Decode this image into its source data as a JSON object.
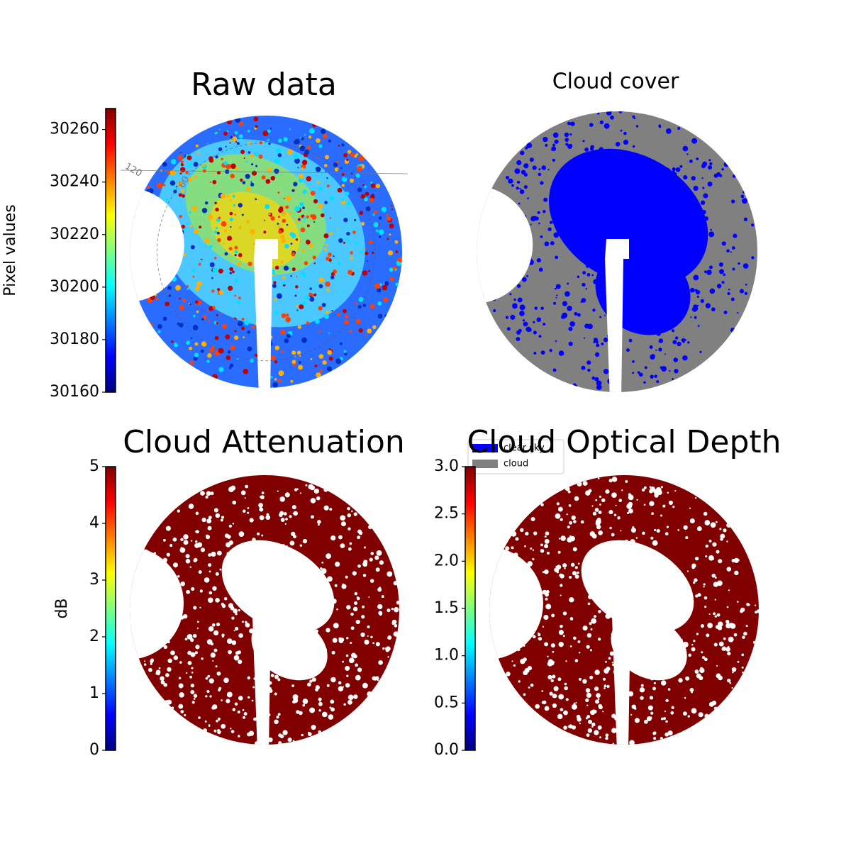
{
  "chart_data": [
    {
      "type": "image",
      "title": "Raw data",
      "colorbar": {
        "label": "Pixel values",
        "clim": [
          30160,
          30268
        ],
        "cticks": [
          30160,
          30180,
          30200,
          30220,
          30240,
          30260
        ],
        "colormap": "jet"
      },
      "annotations": [
        "120",
        "60"
      ]
    },
    {
      "type": "image",
      "title": "Cloud cover",
      "legend": {
        "entries": [
          {
            "name": "clear sky",
            "color": "#0000ff"
          },
          {
            "name": "cloud",
            "color": "#808080"
          }
        ],
        "position": "lower left"
      }
    },
    {
      "type": "image",
      "title": "Cloud Attenuation",
      "colorbar": {
        "label": "dB",
        "clim": [
          0,
          5
        ],
        "cticks": [
          0,
          1,
          2,
          3,
          4,
          5
        ],
        "colormap": "jet"
      }
    },
    {
      "type": "image",
      "title": "Cloud Optical Depth",
      "colorbar": {
        "label": null,
        "clim": [
          0,
          3
        ],
        "cticks": [
          {
            "value": 0,
            "label": "0.0"
          },
          {
            "value": 0.5,
            "label": "0.5"
          },
          {
            "value": 1,
            "label": "1.0"
          },
          {
            "value": 1.5,
            "label": "1.5"
          },
          {
            "value": 2,
            "label": "2.0"
          },
          {
            "value": 2.5,
            "label": "2.5"
          },
          {
            "value": 3,
            "label": "3.0"
          }
        ],
        "colormap": "jet"
      }
    }
  ]
}
